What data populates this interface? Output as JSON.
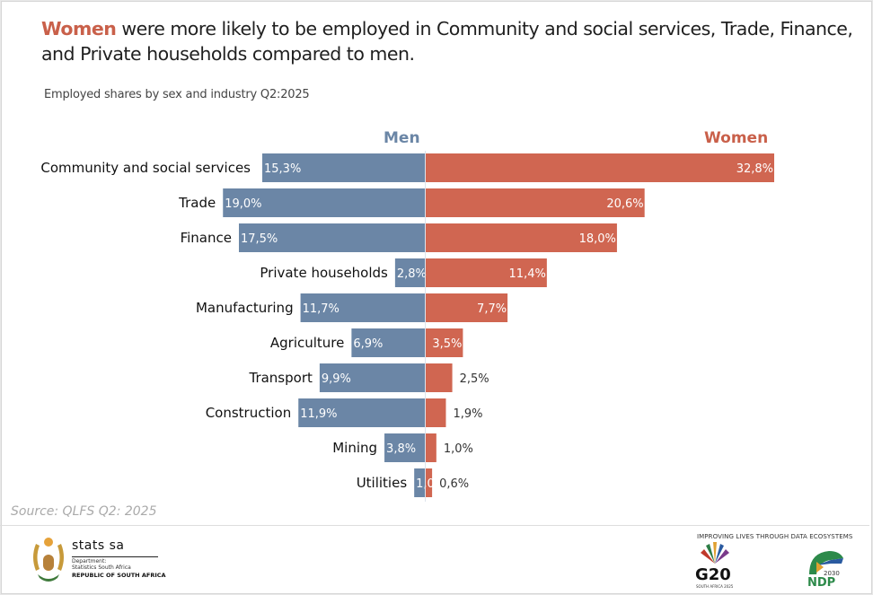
{
  "header": {
    "headline_highlight": "Women",
    "headline_rest": " were more likely to be employed in Community and social services, Trade, Finance, and Private households compared to men.",
    "subtitle": "Employed shares by sex and industry Q2:2025"
  },
  "colors": {
    "men": "#6b86a6",
    "women": "#d06651",
    "highlight": "#c9604a"
  },
  "chart_data": {
    "type": "bar",
    "orientation": "horizontal-diverging",
    "title": "Employed shares by sex and industry Q2:2025",
    "unit": "%",
    "legend": [
      "Men",
      "Women"
    ],
    "legend_placement": "top",
    "categories": [
      "Community and social services",
      "Trade",
      "Finance",
      "Private households",
      "Manufacturing",
      "Agriculture",
      "Transport",
      "Construction",
      "Mining",
      "Utilities"
    ],
    "series": [
      {
        "name": "Men",
        "values": [
          15.3,
          19.0,
          17.5,
          2.8,
          11.7,
          6.9,
          9.9,
          11.9,
          3.8,
          1.0
        ],
        "labels": [
          "15,3%",
          "19,0%",
          "17,5%",
          "2,8%",
          "11,7%",
          "6,9%",
          "9,9%",
          "11,9%",
          "3,8%",
          "1,0%"
        ]
      },
      {
        "name": "Women",
        "values": [
          32.8,
          20.6,
          18.0,
          11.4,
          7.7,
          3.5,
          2.5,
          1.9,
          1.0,
          0.6
        ],
        "labels": [
          "32,8%",
          "20,6%",
          "18,0%",
          "11,4%",
          "7,7%",
          "3,5%",
          "2,5%",
          "1,9%",
          "1,0%",
          "0,6%"
        ]
      }
    ]
  },
  "legend": {
    "men": "Men",
    "women": "Women"
  },
  "footer": {
    "source": "Source: QLFS Q2: 2025",
    "stats_name": "stats sa",
    "stats_dept_1": "Department:",
    "stats_dept_2": "Statistics South Africa",
    "stats_republic": "REPUBLIC OF SOUTH AFRICA",
    "tagline": "IMPROVING LIVES THROUGH DATA ECOSYSTEMS",
    "g20": "G20",
    "g20_sub": "SOUTH AFRICA 2025",
    "ndp": "NDP",
    "ndp_year": "2030"
  }
}
